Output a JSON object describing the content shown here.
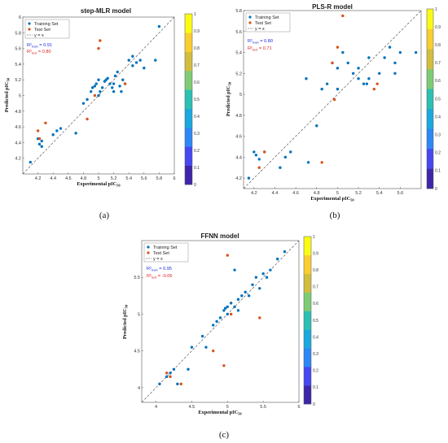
{
  "figure": {
    "legend": {
      "train": "Training Set",
      "test": "Test Set",
      "line": "y = x"
    },
    "colors": {
      "train": "#0072BD",
      "test": "#D95319",
      "line": "#444444",
      "colorbar": [
        "#3E26A8",
        "#4748F0",
        "#2E87F7",
        "#1AA9DE",
        "#2CC0B2",
        "#7ECB74",
        "#D2BD3F",
        "#FBCD2F",
        "#F9FB15"
      ]
    },
    "colorbar_ticks": [
      "0",
      "0.1",
      "0.2",
      "0.3",
      "0.4",
      "0.5",
      "0.6",
      "0.7",
      "0.8",
      "0.9",
      "1"
    ]
  },
  "chart_data": [
    {
      "type": "scatter",
      "title": "step-MLR model",
      "caption": "(a)",
      "xlabel": "Experimental pIC",
      "xlabel_sub": "50",
      "ylabel": "Predicted pIC",
      "ylabel_sub": "50",
      "xlim": [
        4,
        6
      ],
      "ylim": [
        4,
        6
      ],
      "xticks": [
        "4.2",
        "4.4",
        "4.6",
        "4.8",
        "5",
        "5.2",
        "5.4",
        "5.6",
        "5.8",
        "6"
      ],
      "yticks": [
        "4.2",
        "4.4",
        "4.6",
        "4.8",
        "5",
        "5.2",
        "5.4",
        "5.6",
        "5.8",
        "6"
      ],
      "r2_train": {
        "label": "R²",
        "sub": "train",
        "value": "= 0.91"
      },
      "r2_test": {
        "label": "R²",
        "sub": "test",
        "value": "= 0.80"
      },
      "series": [
        {
          "name": "Training Set",
          "points": [
            [
              4.1,
              4.15
            ],
            [
              4.2,
              4.45
            ],
            [
              4.22,
              4.38
            ],
            [
              4.25,
              4.42
            ],
            [
              4.4,
              4.5
            ],
            [
              4.45,
              4.55
            ],
            [
              4.5,
              4.58
            ],
            [
              4.7,
              4.52
            ],
            [
              4.8,
              4.9
            ],
            [
              4.85,
              4.95
            ],
            [
              4.9,
              5.05
            ],
            [
              4.92,
              5.1
            ],
            [
              4.95,
              5.12
            ],
            [
              4.97,
              5.15
            ],
            [
              5.0,
              5.0
            ],
            [
              5.0,
              5.2
            ],
            [
              5.02,
              5.05
            ],
            [
              5.05,
              5.1
            ],
            [
              5.08,
              5.18
            ],
            [
              5.1,
              5.2
            ],
            [
              5.12,
              5.22
            ],
            [
              5.15,
              5.15
            ],
            [
              5.18,
              5.1
            ],
            [
              5.2,
              5.05
            ],
            [
              5.2,
              5.15
            ],
            [
              5.22,
              5.25
            ],
            [
              5.25,
              5.3
            ],
            [
              5.28,
              5.12
            ],
            [
              5.3,
              5.05
            ],
            [
              5.32,
              5.2
            ],
            [
              5.35,
              5.15
            ],
            [
              5.4,
              5.45
            ],
            [
              5.45,
              5.5
            ],
            [
              5.5,
              5.42
            ],
            [
              5.55,
              5.45
            ],
            [
              5.6,
              5.35
            ],
            [
              5.75,
              5.45
            ],
            [
              5.8,
              5.88
            ],
            [
              4.25,
              4.35
            ],
            [
              5.45,
              5.38
            ]
          ]
        },
        {
          "name": "Test Set",
          "points": [
            [
              4.2,
              4.55
            ],
            [
              4.22,
              4.45
            ],
            [
              4.3,
              4.65
            ],
            [
              4.85,
              4.7
            ],
            [
              4.95,
              5.0
            ],
            [
              5.0,
              5.6
            ],
            [
              5.02,
              5.7
            ],
            [
              5.35,
              5.15
            ]
          ]
        }
      ]
    },
    {
      "type": "scatter",
      "title": "PLS-R model",
      "caption": "(b)",
      "xlabel": "Experimental pIC",
      "xlabel_sub": "50",
      "ylabel": "Predicted pIC",
      "ylabel_sub": "50",
      "xlim": [
        4.1,
        5.8
      ],
      "ylim": [
        4.1,
        5.8
      ],
      "xticks": [
        "4.2",
        "4.4",
        "4.6",
        "4.8",
        "5",
        "5.2",
        "5.4",
        "5.6"
      ],
      "yticks": [
        "4.2",
        "4.4",
        "4.6",
        "4.8",
        "5",
        "5.2",
        "5.4",
        "5.6",
        "5.8"
      ],
      "r2_train": {
        "label": "R²",
        "sub": "train",
        "value": "= 0.80"
      },
      "r2_test": {
        "label": "R²",
        "sub": "test",
        "value": "= 0.71"
      },
      "series": [
        {
          "name": "Training Set",
          "points": [
            [
              4.15,
              4.2
            ],
            [
              4.2,
              4.45
            ],
            [
              4.22,
              4.42
            ],
            [
              4.25,
              4.38
            ],
            [
              4.3,
              4.45
            ],
            [
              4.45,
              4.3
            ],
            [
              4.5,
              4.4
            ],
            [
              4.55,
              4.45
            ],
            [
              4.7,
              5.15
            ],
            [
              4.8,
              4.7
            ],
            [
              4.85,
              5.05
            ],
            [
              4.9,
              5.1
            ],
            [
              4.95,
              5.3
            ],
            [
              5.0,
              5.05
            ],
            [
              5.0,
              5.25
            ],
            [
              5.05,
              5.4
            ],
            [
              5.1,
              5.3
            ],
            [
              5.15,
              5.2
            ],
            [
              5.2,
              5.15
            ],
            [
              5.2,
              5.25
            ],
            [
              5.25,
              5.1
            ],
            [
              5.3,
              5.15
            ],
            [
              5.3,
              5.35
            ],
            [
              5.4,
              5.2
            ],
            [
              5.45,
              5.35
            ],
            [
              5.5,
              5.45
            ],
            [
              5.55,
              5.3
            ],
            [
              5.55,
              5.2
            ],
            [
              5.6,
              5.4
            ],
            [
              5.75,
              5.4
            ],
            [
              4.72,
              4.35
            ],
            [
              5.28,
              5.1
            ]
          ]
        },
        {
          "name": "Test Set",
          "points": [
            [
              4.25,
              4.3
            ],
            [
              4.3,
              4.45
            ],
            [
              4.85,
              4.35
            ],
            [
              4.95,
              5.3
            ],
            [
              4.97,
              4.95
            ],
            [
              5.0,
              5.45
            ],
            [
              5.05,
              5.75
            ],
            [
              5.35,
              5.05
            ],
            [
              5.38,
              5.1
            ]
          ]
        }
      ]
    },
    {
      "type": "scatter",
      "title": "FFNN model",
      "caption": "(c)",
      "xlabel": "Experimental pIC",
      "xlabel_sub": "50",
      "ylabel": "Predicted pIC",
      "ylabel_sub": "50",
      "xlim": [
        3.8,
        6
      ],
      "ylim": [
        3.8,
        6
      ],
      "xticks": [
        "4",
        "4.5",
        "5",
        "5.5",
        "6"
      ],
      "yticks": [
        "4",
        "4.5",
        "5",
        "5.5"
      ],
      "r2_train": {
        "label": "R²",
        "sub": "train",
        "value": "= 0.95"
      },
      "r2_test": {
        "label": "R²",
        "sub": "test",
        "value": "= -0.06"
      },
      "series": [
        {
          "name": "Training Set",
          "points": [
            [
              4.05,
              4.05
            ],
            [
              4.15,
              4.15
            ],
            [
              4.2,
              4.2
            ],
            [
              4.25,
              4.25
            ],
            [
              4.3,
              4.05
            ],
            [
              4.45,
              4.25
            ],
            [
              4.5,
              4.55
            ],
            [
              4.65,
              4.7
            ],
            [
              4.7,
              4.55
            ],
            [
              4.8,
              4.85
            ],
            [
              4.85,
              4.9
            ],
            [
              4.9,
              4.95
            ],
            [
              4.95,
              5.05
            ],
            [
              5.0,
              5.0
            ],
            [
              5.0,
              5.1
            ],
            [
              5.05,
              5.15
            ],
            [
              5.1,
              5.1
            ],
            [
              5.15,
              5.2
            ],
            [
              5.2,
              5.25
            ],
            [
              5.25,
              5.3
            ],
            [
              5.3,
              5.25
            ],
            [
              5.35,
              5.4
            ],
            [
              5.4,
              5.5
            ],
            [
              5.45,
              5.35
            ],
            [
              5.5,
              5.55
            ],
            [
              5.55,
              5.5
            ],
            [
              5.6,
              5.6
            ],
            [
              5.7,
              5.75
            ],
            [
              5.8,
              5.85
            ],
            [
              5.1,
              5.6
            ],
            [
              4.97,
              5.08
            ],
            [
              5.15,
              5.05
            ]
          ]
        },
        {
          "name": "Test Set",
          "points": [
            [
              4.15,
              4.2
            ],
            [
              4.2,
              4.15
            ],
            [
              4.35,
              4.05
            ],
            [
              4.8,
              4.5
            ],
            [
              4.95,
              4.3
            ],
            [
              5.0,
              5.8
            ],
            [
              5.05,
              5.0
            ],
            [
              5.45,
              4.95
            ]
          ]
        }
      ]
    }
  ]
}
